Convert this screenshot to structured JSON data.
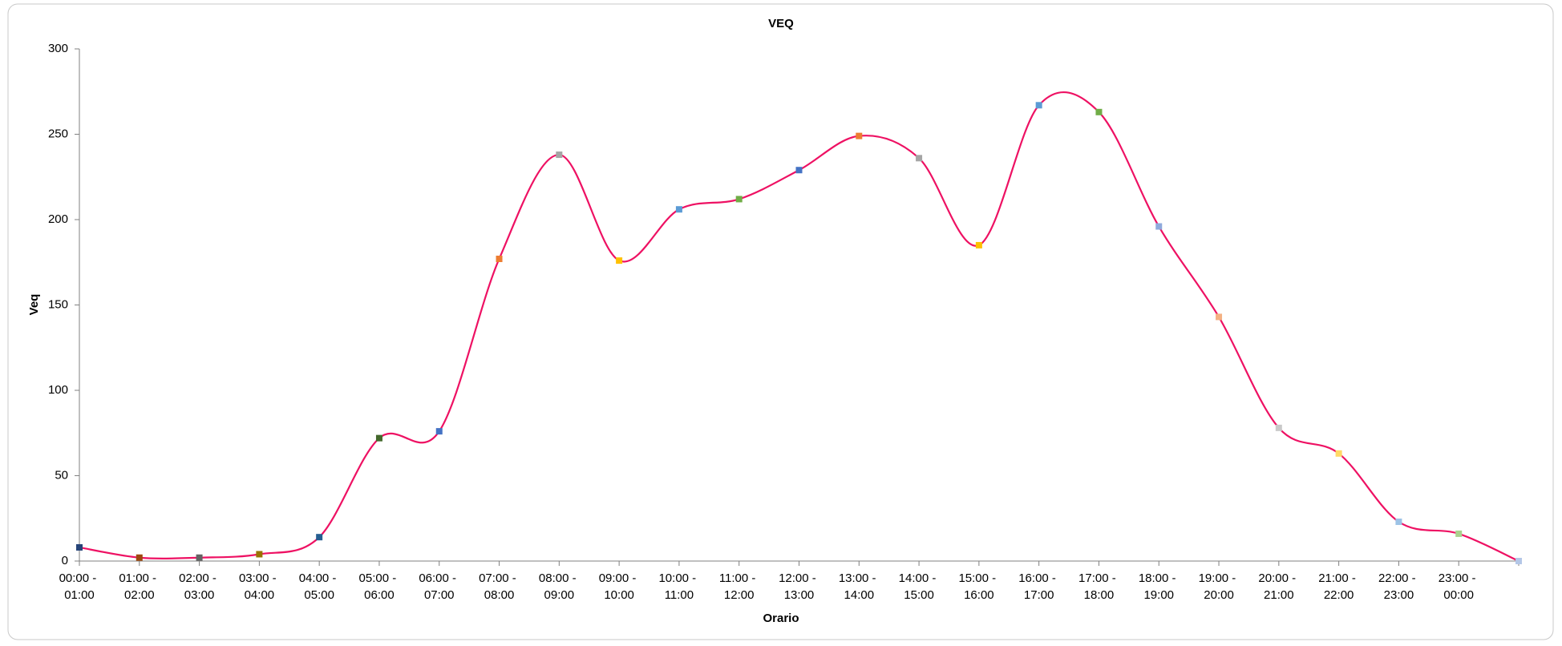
{
  "chart_data": {
    "type": "line",
    "title": "VEQ",
    "x_label": "Orario",
    "y_label": "Veq",
    "categories": [
      "00:00 - 01:00",
      "01:00 - 02:00",
      "02:00 - 03:00",
      "03:00 - 04:00",
      "04:00 - 05:00",
      "05:00 - 06:00",
      "06:00 - 07:00",
      "07:00 - 08:00",
      "08:00 - 09:00",
      "09:00 - 10:00",
      "10:00 - 11:00",
      "11:00 - 12:00",
      "12:00 - 13:00",
      "13:00 - 14:00",
      "14:00 - 15:00",
      "15:00 - 16:00",
      "16:00 - 17:00",
      "17:00 - 18:00",
      "18:00 - 19:00",
      "19:00 - 20:00",
      "20:00 - 21:00",
      "21:00 - 22:00",
      "22:00 - 23:00",
      "23:00 - 00:00",
      null
    ],
    "series": [
      {
        "name": "Veq",
        "color": "#ee1163",
        "values": [
          8,
          2,
          2,
          4,
          14,
          72,
          76,
          177,
          238,
          176,
          206,
          212,
          229,
          249,
          236,
          185,
          267,
          263,
          196,
          143,
          78,
          63,
          23,
          16,
          0
        ],
        "marker_colors": [
          "#264478",
          "#9e480e",
          "#636363",
          "#997300",
          "#255e91",
          "#43682b",
          "#4472c4",
          "#ed7d31",
          "#a5a5a5",
          "#ffc000",
          "#5b9bd5",
          "#70ad47",
          "#4472c4",
          "#ed7d31",
          "#a5a5a5",
          "#ffc000",
          "#5b9bd5",
          "#70ad47",
          "#8faadc",
          "#f4b183",
          "#c9c9c9",
          "#ffd966",
          "#9dc3e6",
          "#a9d18e",
          "#b4c7e7"
        ]
      }
    ],
    "ylim": [
      0,
      300
    ],
    "yticks": [
      0,
      50,
      100,
      150,
      200,
      250,
      300
    ],
    "smooth": true
  }
}
